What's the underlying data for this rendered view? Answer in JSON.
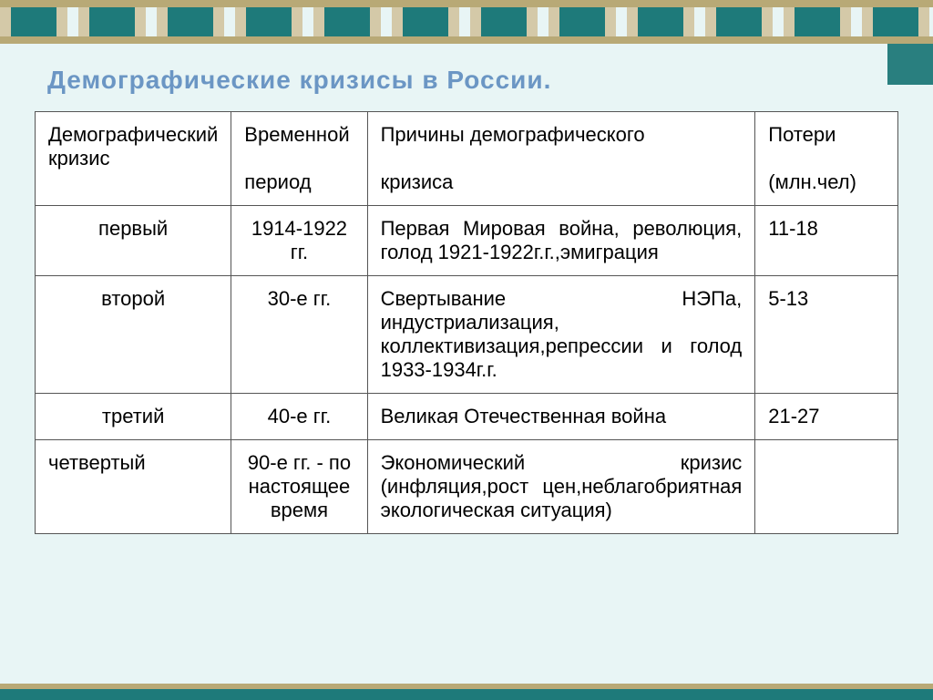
{
  "slide": {
    "title": "Демографические кризисы в России.",
    "background_color": "#e8f5f5",
    "title_color": "#6b96c4",
    "border_dark": "#1e7a7a",
    "border_tan": "#b8a976"
  },
  "table": {
    "type": "table",
    "columns": [
      {
        "label": "Демографический кризис",
        "width": "16%",
        "align": "left"
      },
      {
        "label_line1": "Временной",
        "label_line2": "период",
        "width": "16%",
        "align": "left"
      },
      {
        "label_line1": "Причины демографического",
        "label_line2": "кризиса",
        "width": "50%",
        "align": "left"
      },
      {
        "label_line1": "Потери",
        "label_line2": "(млн.чел)",
        "width": "18%",
        "align": "left"
      }
    ],
    "rows": [
      {
        "crisis": "первый",
        "period": "1914-1922 гг.",
        "causes": "Первая Мировая война, революция, голод 1921-1922г.г.,эмиграция",
        "losses": "11-18"
      },
      {
        "crisis": "второй",
        "period": "30-е гг.",
        "causes": "Свертывание НЭПа, индустриализация, коллективизация,репрессии и голод 1933-1934г.г.",
        "losses": "5-13"
      },
      {
        "crisis": "третий",
        "period": "40-е гг.",
        "causes": "Великая Отечественная война",
        "losses": "21-27"
      },
      {
        "crisis": "четвертый",
        "period": "90-е гг. - по настоящее время",
        "causes": "Экономический кризис (инфляция,рост цен,неблагобриятная экологическая ситуация)",
        "losses": ""
      }
    ],
    "cell_font_size": 22,
    "border_color": "#555555",
    "background_color": "#ffffff"
  }
}
